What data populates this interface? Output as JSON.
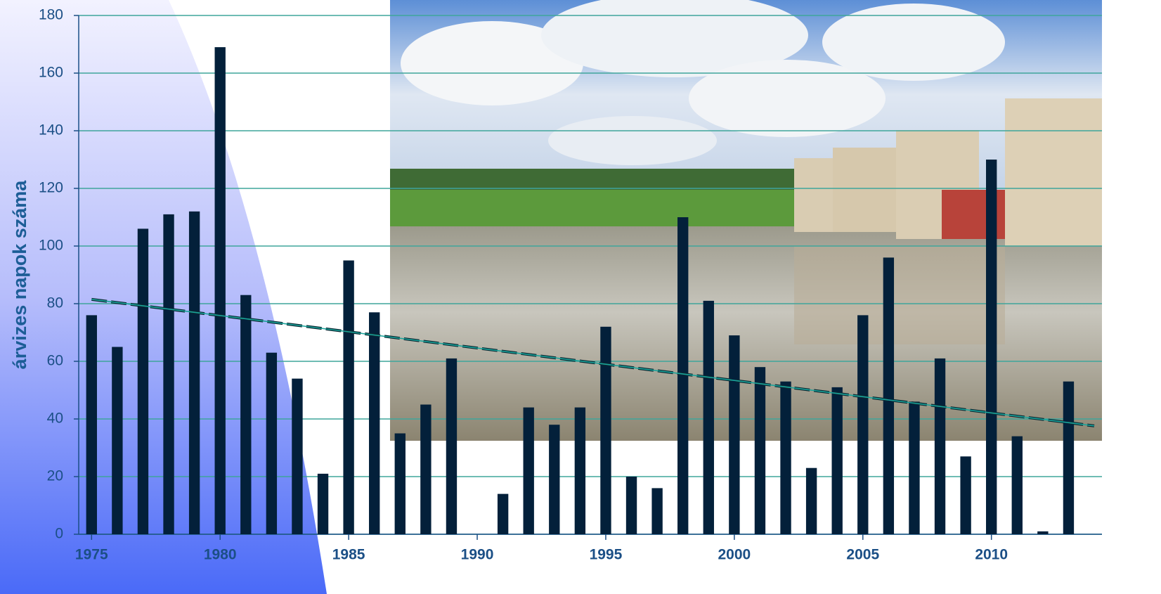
{
  "chart_data": {
    "type": "bar",
    "y_label": "árvizes napok száma",
    "x": [
      1975,
      1976,
      1977,
      1978,
      1979,
      1980,
      1981,
      1982,
      1983,
      1984,
      1985,
      1986,
      1987,
      1988,
      1989,
      1990,
      1991,
      1992,
      1993,
      1994,
      1995,
      1996,
      1997,
      1998,
      1999,
      2000,
      2001,
      2002,
      2003,
      2004,
      2005,
      2006,
      2007,
      2008,
      2009,
      2010,
      2011,
      2012,
      2013
    ],
    "values": [
      76,
      65,
      106,
      111,
      112,
      169,
      83,
      63,
      54,
      21,
      95,
      77,
      35,
      45,
      61,
      0,
      14,
      44,
      38,
      44,
      72,
      20,
      16,
      110,
      81,
      69,
      58,
      53,
      23,
      51,
      76,
      96,
      46,
      61,
      27,
      130,
      34,
      1,
      53
    ],
    "color": "#03203a",
    "trendline": {
      "x": [
        1975,
        2014
      ],
      "values": [
        81.5,
        37.6
      ],
      "color": "#1aa39a"
    },
    "xlim": [
      1974.5,
      2014.3
    ],
    "xticks": [
      1975,
      1980,
      1985,
      1990,
      1995,
      2000,
      2005,
      2010
    ],
    "ylim": [
      0,
      180
    ],
    "yticks": [
      0,
      20,
      40,
      60,
      80,
      100,
      120,
      140,
      160,
      180
    ],
    "grid": true
  }
}
